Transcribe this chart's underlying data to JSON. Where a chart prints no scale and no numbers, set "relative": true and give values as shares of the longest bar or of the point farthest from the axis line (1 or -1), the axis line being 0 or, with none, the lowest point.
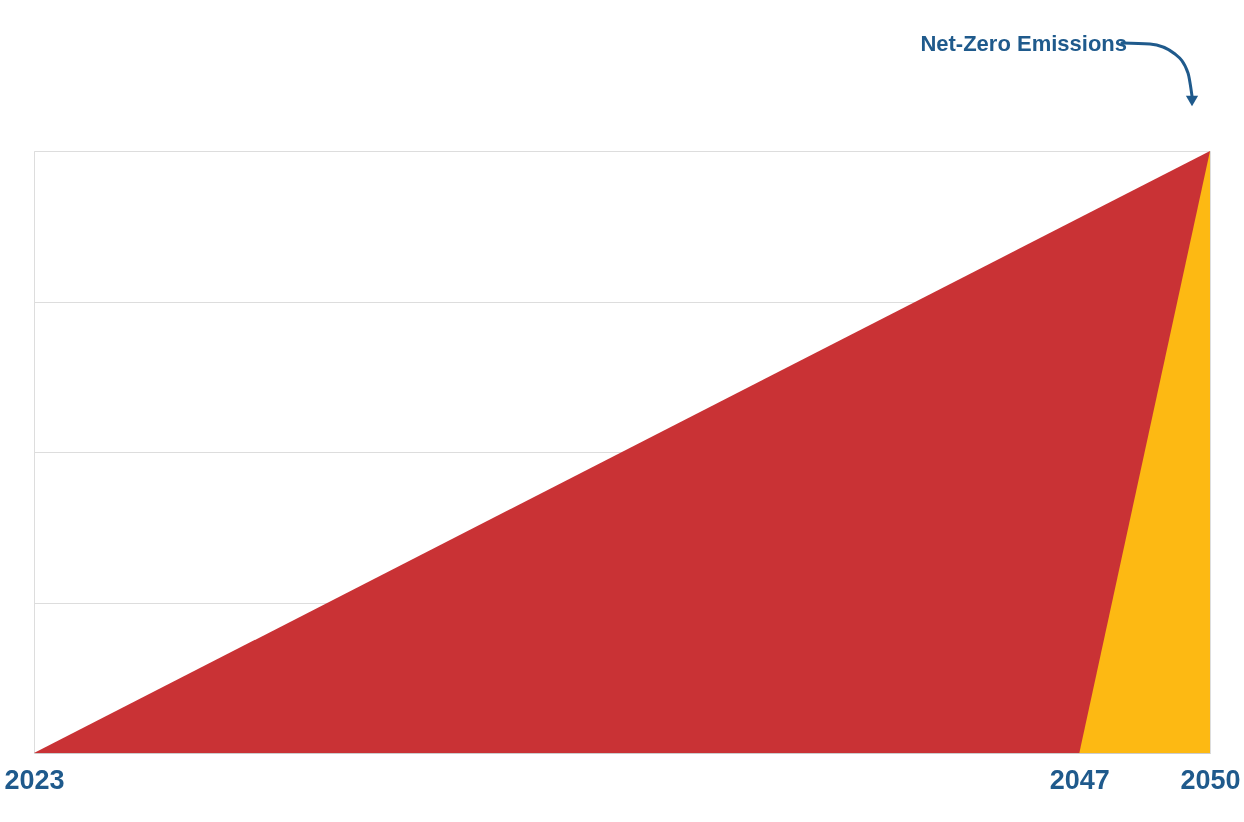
{
  "chart_data": {
    "type": "area",
    "relative": true,
    "xlim": [
      2023,
      2050
    ],
    "xticks": [
      2023,
      2047,
      2050
    ],
    "grid": "y",
    "series": [
      {
        "color": "#c93235",
        "x": [
          2023,
          2050
        ],
        "values": [
          0,
          1
        ]
      },
      {
        "color": "#fdb913",
        "x": [
          2047,
          2050
        ],
        "values": [
          0,
          1
        ]
      }
    ],
    "annotations": [
      "Net-Zero Emissions"
    ]
  }
}
